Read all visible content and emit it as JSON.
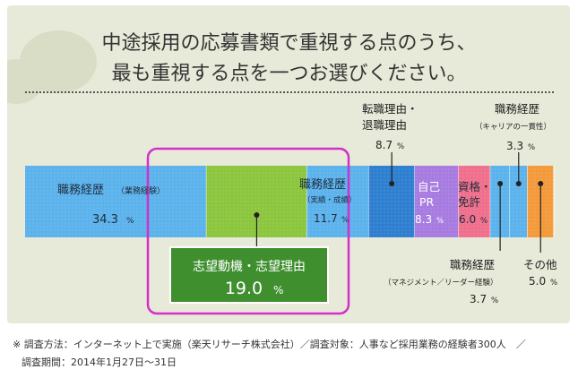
{
  "title": {
    "line1": "中途採用の応募書類で重視する点のうち、",
    "line2": "最も重視する点を一つお選びください。"
  },
  "chart_data": {
    "type": "bar",
    "orientation": "horizontal-stacked",
    "unit": "%",
    "segments": [
      {
        "label": "職務経歴",
        "sub": "（業務経験）",
        "value": 34.3,
        "color": "#5cb3ec"
      },
      {
        "label": "志望動機・志望理由",
        "sub": "",
        "value": 19.0,
        "color": "#8cc63f"
      },
      {
        "label": "職務経歴",
        "sub": "（実績・成績）",
        "value": 11.7,
        "color": "#5cb3ec"
      },
      {
        "label": "転職理由・退職理由",
        "sub": "",
        "value": 8.7,
        "color": "#2f7fd0"
      },
      {
        "label": "自己PR",
        "sub": "",
        "value": 8.3,
        "color": "#a77be0"
      },
      {
        "label": "資格・免許",
        "sub": "",
        "value": 6.0,
        "color": "#ef6f8c"
      },
      {
        "label": "職務経歴",
        "sub": "（マネジメント／リーダー経験）",
        "value": 3.7,
        "color": "#5cb3ec"
      },
      {
        "label": "職務経歴",
        "sub": "（キャリアの一貫性）",
        "value": 3.3,
        "color": "#5cb3ec"
      },
      {
        "label": "その他",
        "sub": "",
        "value": 5.0,
        "color": "#f39a3c"
      }
    ]
  },
  "labels": {
    "seg0_name": "職務経歴",
    "seg0_sub": "（業務経験）",
    "seg0_value": "34.3",
    "seg1_name": "志望動機・志望理由",
    "seg1_value": "19.0",
    "seg2_name": "職務経歴",
    "seg2_sub": "（実績・成績）",
    "seg2_value": "11.7",
    "seg3_name_l1": "転職理由・",
    "seg3_name_l2": "退職理由",
    "seg3_value": "8.7",
    "seg4_name_l1": "自己",
    "seg4_name_l2": "PR",
    "seg4_value": "8.3",
    "seg5_name_l1": "資格・",
    "seg5_name_l2": "免許",
    "seg5_value": "6.0",
    "seg6_name": "職務経歴",
    "seg6_sub": "（マネジメント／リーダー経験）",
    "seg6_value": "3.7",
    "seg7_name": "職務経歴",
    "seg7_sub": "（キャリアの一貫性）",
    "seg7_value": "3.3",
    "seg8_name": "その他",
    "seg8_value": "5.0",
    "unit": "%"
  },
  "footer": {
    "line1": "※ 調査方法：インターネット上で実施（楽天リサーチ株式会社）／調査対象：人事など採用業務の経験者300人　／",
    "line2": "調査期間：2014年1月27日〜31日"
  },
  "colors": {
    "highlight_border": "#d52fc9",
    "callout_fill": "#3f8f2f",
    "dot": "#222222"
  }
}
